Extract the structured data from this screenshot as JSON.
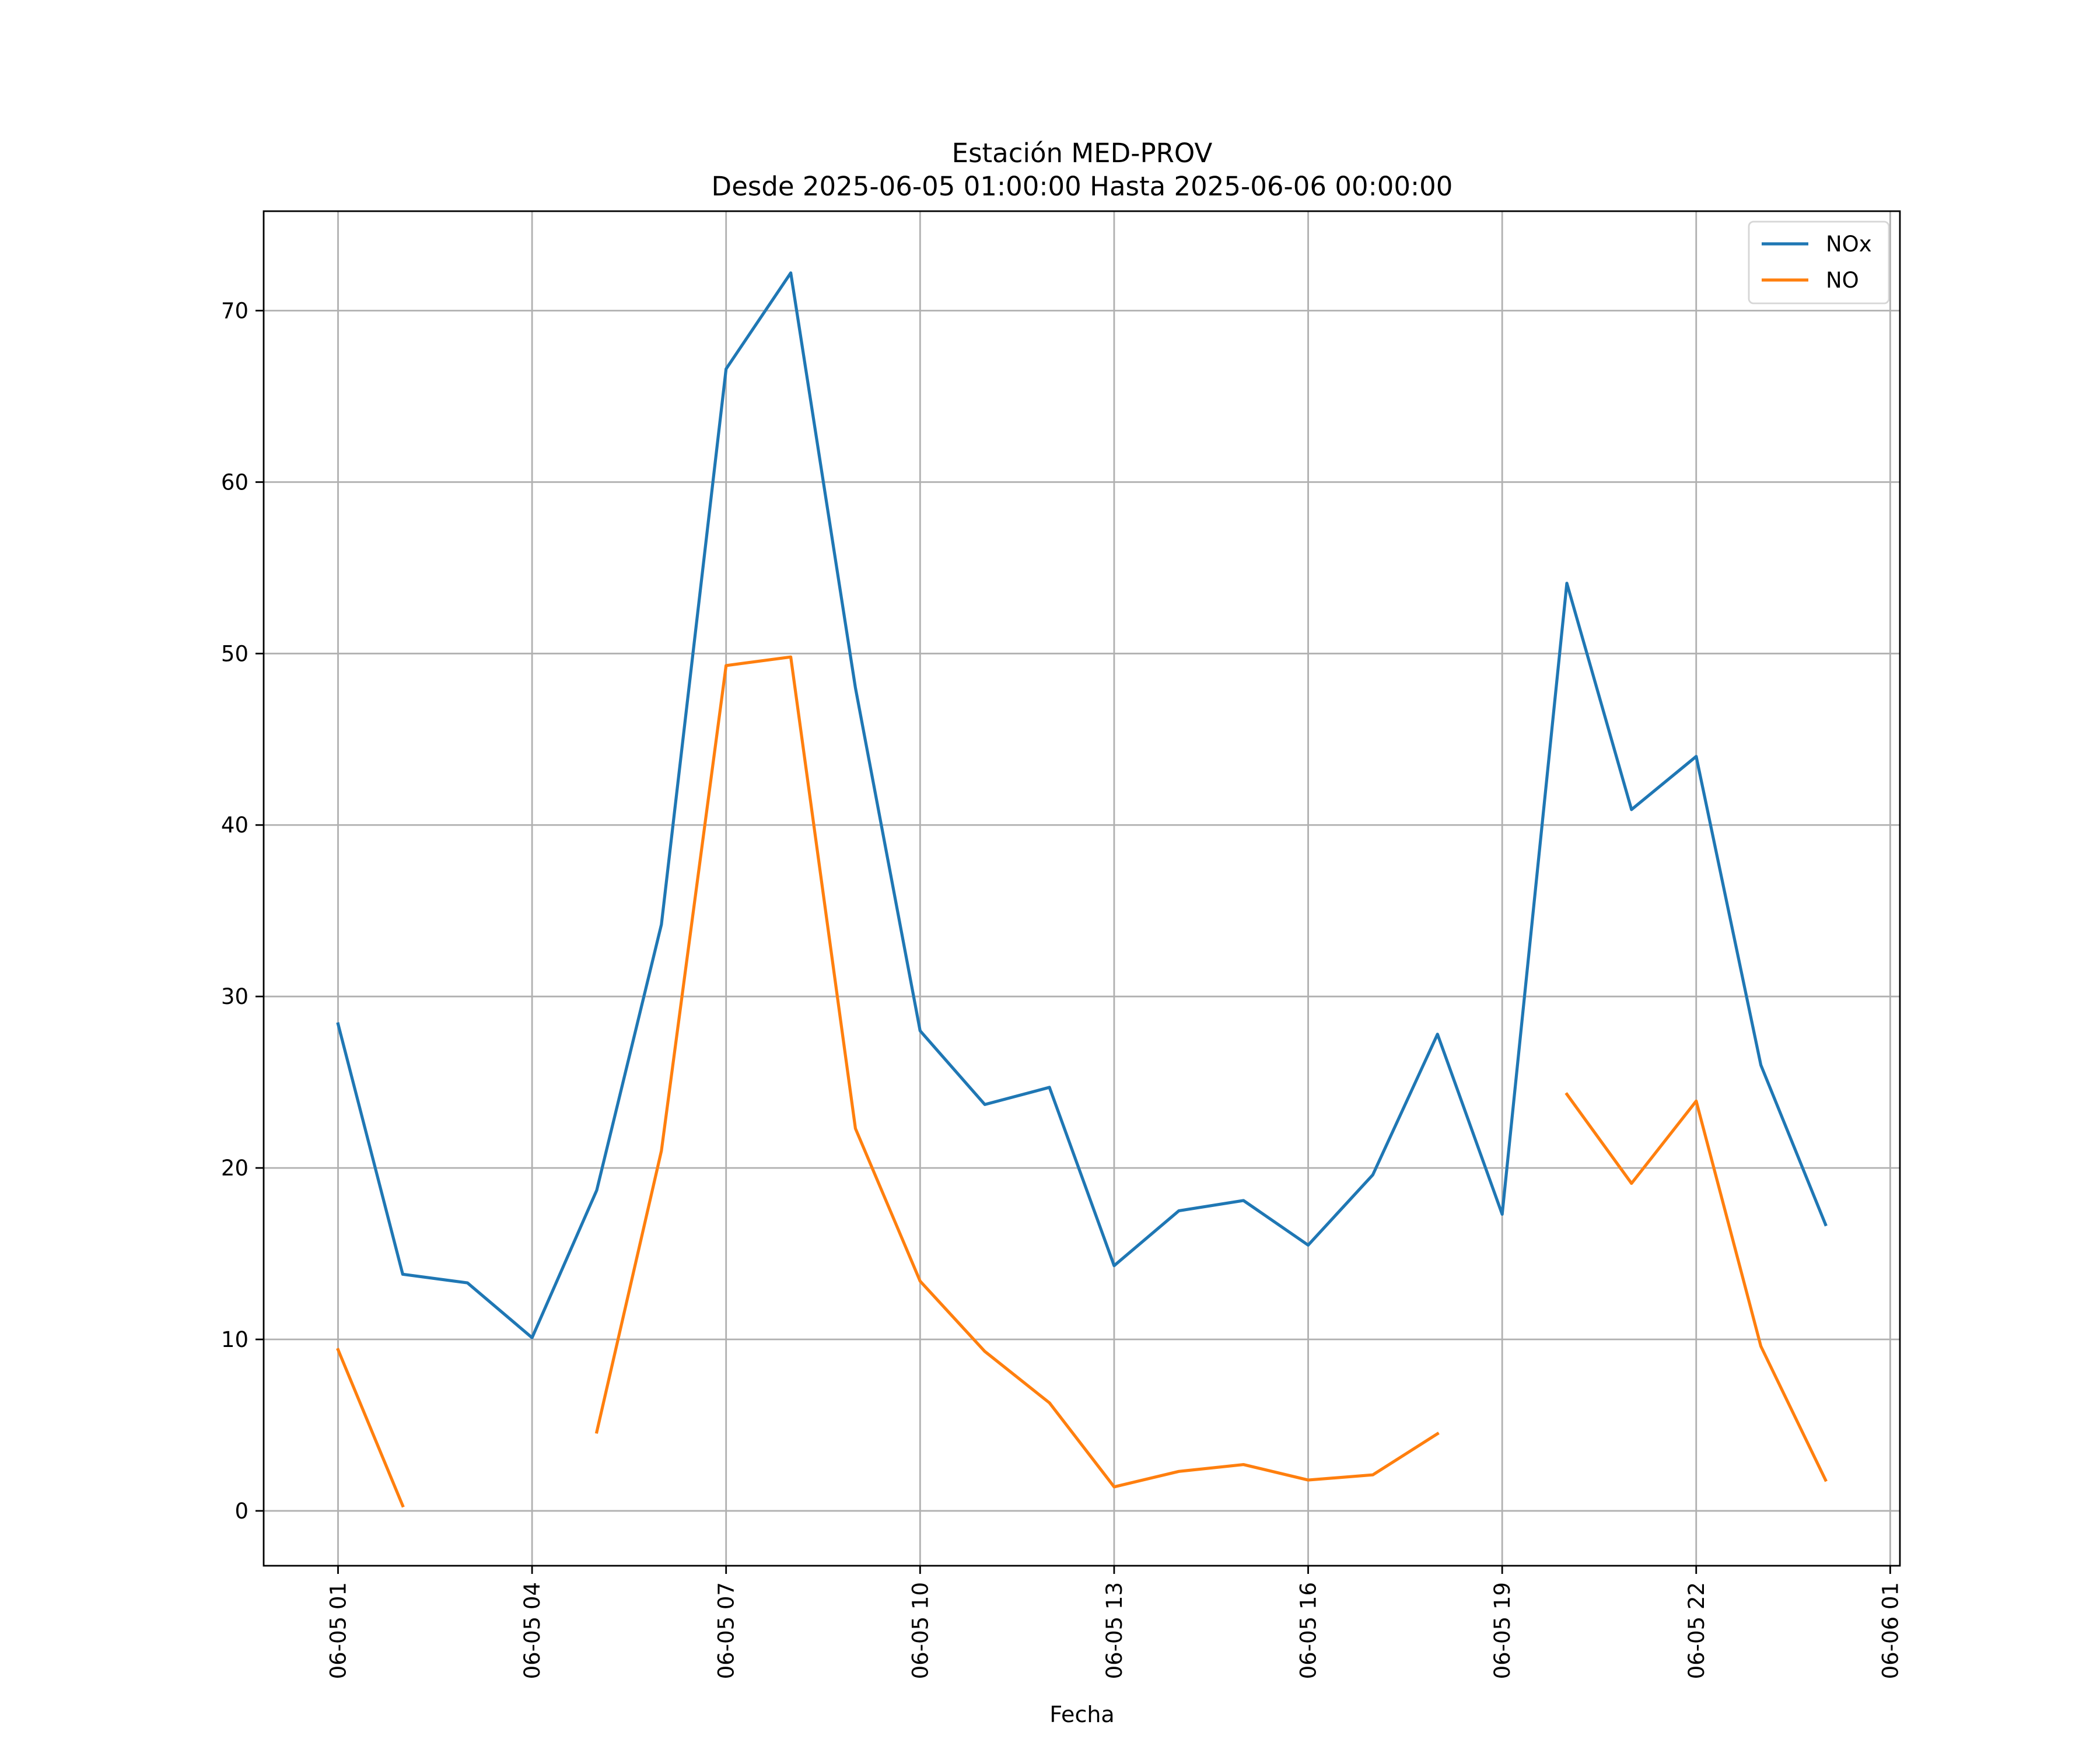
{
  "chart_data": {
    "type": "line",
    "title": "Estación MED-PROV",
    "subtitle": "Desde 2025-06-05 01:00:00 Hasta 2025-06-06 00:00:00",
    "xlabel": "Fecha",
    "ylabel": "",
    "x": [
      "2025-06-05 01:00",
      "2025-06-05 02:00",
      "2025-06-05 03:00",
      "2025-06-05 04:00",
      "2025-06-05 05:00",
      "2025-06-05 06:00",
      "2025-06-05 07:00",
      "2025-06-05 08:00",
      "2025-06-05 09:00",
      "2025-06-05 10:00",
      "2025-06-05 11:00",
      "2025-06-05 12:00",
      "2025-06-05 13:00",
      "2025-06-05 14:00",
      "2025-06-05 15:00",
      "2025-06-05 16:00",
      "2025-06-05 17:00",
      "2025-06-05 18:00",
      "2025-06-05 19:00",
      "2025-06-05 20:00",
      "2025-06-05 21:00",
      "2025-06-05 22:00",
      "2025-06-05 23:00",
      "2025-06-06 00:00"
    ],
    "series": [
      {
        "name": "NOx",
        "color": "#1f77b4",
        "values": [
          28.4,
          13.8,
          13.3,
          10.1,
          18.7,
          34.2,
          66.6,
          72.2,
          48.0,
          28.0,
          23.7,
          24.7,
          14.3,
          17.5,
          18.1,
          15.5,
          19.6,
          27.8,
          17.3,
          54.1,
          40.9,
          44.0,
          26.0,
          16.7
        ]
      },
      {
        "name": "NO",
        "color": "#ff7f0e",
        "values": [
          9.4,
          0.3,
          null,
          null,
          4.6,
          21.0,
          49.3,
          49.8,
          22.3,
          13.4,
          9.3,
          6.3,
          1.4,
          2.3,
          2.7,
          1.8,
          2.1,
          4.5,
          null,
          24.3,
          19.1,
          23.9,
          9.6,
          1.8
        ]
      }
    ],
    "xticks": [
      "06-05 01",
      "06-05 04",
      "06-05 07",
      "06-05 10",
      "06-05 13",
      "06-05 16",
      "06-05 19",
      "06-05 22",
      "06-06 01"
    ],
    "xtick_hours": [
      0,
      3,
      6,
      9,
      12,
      15,
      18,
      21,
      24
    ],
    "yticks": [
      0,
      10,
      20,
      30,
      40,
      50,
      60,
      70
    ],
    "ylim": [
      -3.2,
      75.8
    ],
    "xlim_hours": [
      -1.15,
      24.15
    ],
    "grid": true,
    "legend_position": "top-right"
  }
}
